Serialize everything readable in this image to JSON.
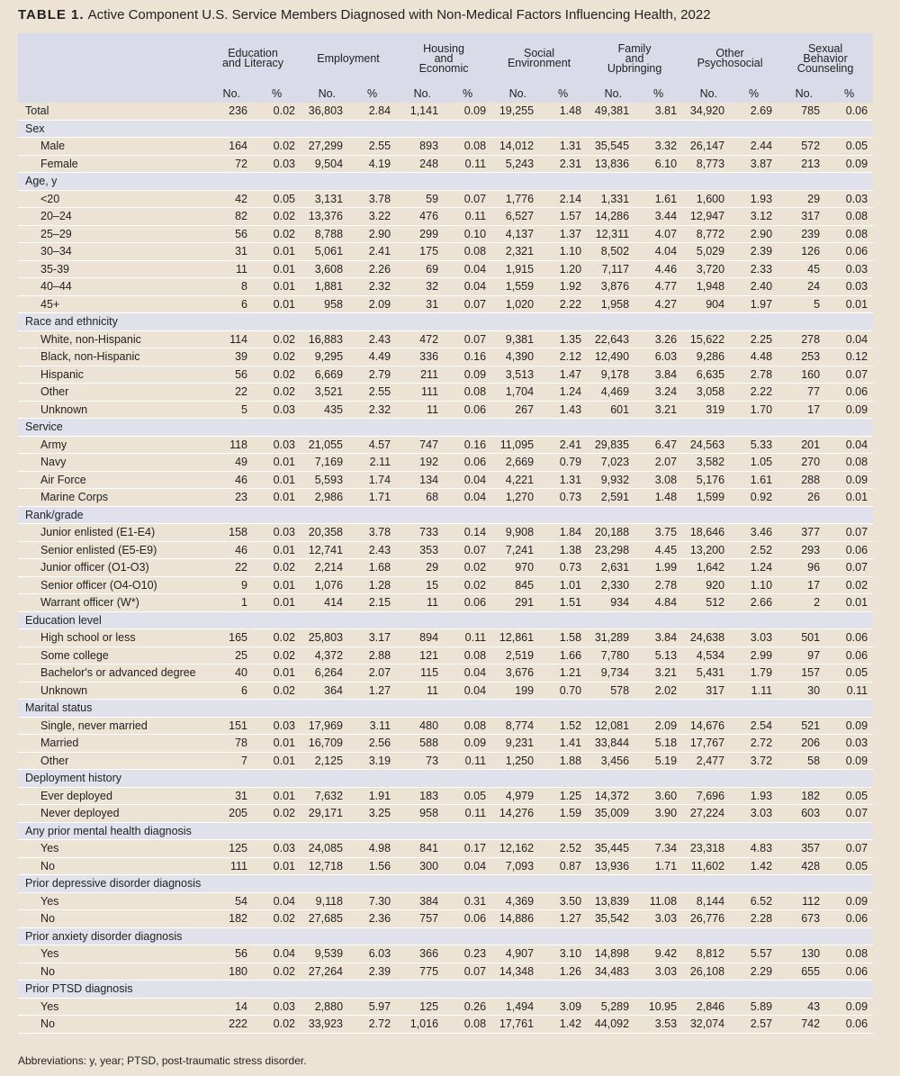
{
  "title_label": "TABLE 1.",
  "title": "Active Component U.S. Service Members Diagnosed with Non-Medical Factors Influencing Health, 2022",
  "table": {
    "column_groups": [
      [
        "Education",
        "and Literacy"
      ],
      [
        "Employment"
      ],
      [
        "Housing",
        "and",
        "Economic"
      ],
      [
        "Social",
        "Environment"
      ],
      [
        "Family",
        "and",
        "Upbringing"
      ],
      [
        "Other",
        "Psychosocial"
      ],
      [
        "Sexual",
        "Behavior",
        "Counseling"
      ]
    ],
    "sub_headers": [
      "No.",
      "%"
    ],
    "total": {
      "label": "Total",
      "cells": [
        "236",
        "0.02",
        "36,803",
        "2.84",
        "1,141",
        "0.09",
        "19,255",
        "1.48",
        "49,381",
        "3.81",
        "34,920",
        "2.69",
        "785",
        "0.06"
      ]
    },
    "sections": [
      {
        "label": "Sex",
        "rows": [
          {
            "label": "Male",
            "cells": [
              "164",
              "0.02",
              "27,299",
              "2.55",
              "893",
              "0.08",
              "14,012",
              "1.31",
              "35,545",
              "3.32",
              "26,147",
              "2.44",
              "572",
              "0.05"
            ]
          },
          {
            "label": "Female",
            "cells": [
              "72",
              "0.03",
              "9,504",
              "4.19",
              "248",
              "0.11",
              "5,243",
              "2.31",
              "13,836",
              "6.10",
              "8,773",
              "3.87",
              "213",
              "0.09"
            ]
          }
        ]
      },
      {
        "label": "Age, y",
        "rows": [
          {
            "label": "<20",
            "cells": [
              "42",
              "0.05",
              "3,131",
              "3.78",
              "59",
              "0.07",
              "1,776",
              "2.14",
              "1,331",
              "1.61",
              "1,600",
              "1.93",
              "29",
              "0.03"
            ]
          },
          {
            "label": "20–24",
            "cells": [
              "82",
              "0.02",
              "13,376",
              "3.22",
              "476",
              "0.11",
              "6,527",
              "1.57",
              "14,286",
              "3.44",
              "12,947",
              "3.12",
              "317",
              "0.08"
            ]
          },
          {
            "label": "25–29",
            "cells": [
              "56",
              "0.02",
              "8,788",
              "2.90",
              "299",
              "0.10",
              "4,137",
              "1.37",
              "12,311",
              "4.07",
              "8,772",
              "2.90",
              "239",
              "0.08"
            ]
          },
          {
            "label": "30–34",
            "cells": [
              "31",
              "0.01",
              "5,061",
              "2.41",
              "175",
              "0.08",
              "2,321",
              "1.10",
              "8,502",
              "4.04",
              "5,029",
              "2.39",
              "126",
              "0.06"
            ]
          },
          {
            "label": "35-39",
            "cells": [
              "11",
              "0.01",
              "3,608",
              "2.26",
              "69",
              "0.04",
              "1,915",
              "1.20",
              "7,117",
              "4.46",
              "3,720",
              "2.33",
              "45",
              "0.03"
            ]
          },
          {
            "label": "40–44",
            "cells": [
              "8",
              "0.01",
              "1,881",
              "2.32",
              "32",
              "0.04",
              "1,559",
              "1.92",
              "3,876",
              "4.77",
              "1,948",
              "2.40",
              "24",
              "0.03"
            ]
          },
          {
            "label": "45+",
            "cells": [
              "6",
              "0.01",
              "958",
              "2.09",
              "31",
              "0.07",
              "1,020",
              "2.22",
              "1,958",
              "4.27",
              "904",
              "1.97",
              "5",
              "0.01"
            ]
          }
        ]
      },
      {
        "label": "Race and ethnicity",
        "rows": [
          {
            "label": "White, non-Hispanic",
            "cells": [
              "114",
              "0.02",
              "16,883",
              "2.43",
              "472",
              "0.07",
              "9,381",
              "1.35",
              "22,643",
              "3.26",
              "15,622",
              "2.25",
              "278",
              "0.04"
            ]
          },
          {
            "label": "Black, non-Hispanic",
            "cells": [
              "39",
              "0.02",
              "9,295",
              "4.49",
              "336",
              "0.16",
              "4,390",
              "2.12",
              "12,490",
              "6.03",
              "9,286",
              "4.48",
              "253",
              "0.12"
            ]
          },
          {
            "label": "Hispanic",
            "cells": [
              "56",
              "0.02",
              "6,669",
              "2.79",
              "211",
              "0.09",
              "3,513",
              "1.47",
              "9,178",
              "3.84",
              "6,635",
              "2.78",
              "160",
              "0.07"
            ]
          },
          {
            "label": "Other",
            "cells": [
              "22",
              "0.02",
              "3,521",
              "2.55",
              "111",
              "0.08",
              "1,704",
              "1.24",
              "4,469",
              "3.24",
              "3,058",
              "2.22",
              "77",
              "0.06"
            ]
          },
          {
            "label": "Unknown",
            "cells": [
              "5",
              "0.03",
              "435",
              "2.32",
              "11",
              "0.06",
              "267",
              "1.43",
              "601",
              "3.21",
              "319",
              "1.70",
              "17",
              "0.09"
            ]
          }
        ]
      },
      {
        "label": "Service",
        "rows": [
          {
            "label": "Army",
            "cells": [
              "118",
              "0.03",
              "21,055",
              "4.57",
              "747",
              "0.16",
              "11,095",
              "2.41",
              "29,835",
              "6.47",
              "24,563",
              "5.33",
              "201",
              "0.04"
            ]
          },
          {
            "label": "Navy",
            "cells": [
              "49",
              "0.01",
              "7,169",
              "2.11",
              "192",
              "0.06",
              "2,669",
              "0.79",
              "7,023",
              "2.07",
              "3,582",
              "1.05",
              "270",
              "0.08"
            ]
          },
          {
            "label": "Air Force",
            "cells": [
              "46",
              "0.01",
              "5,593",
              "1.74",
              "134",
              "0.04",
              "4,221",
              "1.31",
              "9,932",
              "3.08",
              "5,176",
              "1.61",
              "288",
              "0.09"
            ]
          },
          {
            "label": "Marine Corps",
            "cells": [
              "23",
              "0.01",
              "2,986",
              "1.71",
              "68",
              "0.04",
              "1,270",
              "0.73",
              "2,591",
              "1.48",
              "1,599",
              "0.92",
              "26",
              "0.01"
            ]
          }
        ]
      },
      {
        "label": "Rank/grade",
        "rows": [
          {
            "label": "Junior enlisted (E1-E4)",
            "cells": [
              "158",
              "0.03",
              "20,358",
              "3.78",
              "733",
              "0.14",
              "9,908",
              "1.84",
              "20,188",
              "3.75",
              "18,646",
              "3.46",
              "377",
              "0.07"
            ]
          },
          {
            "label": "Senior enlisted (E5-E9)",
            "cells": [
              "46",
              "0.01",
              "12,741",
              "2.43",
              "353",
              "0.07",
              "7,241",
              "1.38",
              "23,298",
              "4.45",
              "13,200",
              "2.52",
              "293",
              "0.06"
            ]
          },
          {
            "label": "Junior officer (O1-O3)",
            "cells": [
              "22",
              "0.02",
              "2,214",
              "1.68",
              "29",
              "0.02",
              "970",
              "0.73",
              "2,631",
              "1.99",
              "1,642",
              "1.24",
              "96",
              "0.07"
            ]
          },
          {
            "label": "Senior officer (O4-O10)",
            "cells": [
              "9",
              "0.01",
              "1,076",
              "1.28",
              "15",
              "0.02",
              "845",
              "1.01",
              "2,330",
              "2.78",
              "920",
              "1.10",
              "17",
              "0.02"
            ]
          },
          {
            "label": "Warrant officer (W*)",
            "cells": [
              "1",
              "0.01",
              "414",
              "2.15",
              "11",
              "0.06",
              "291",
              "1.51",
              "934",
              "4.84",
              "512",
              "2.66",
              "2",
              "0.01"
            ]
          }
        ]
      },
      {
        "label": "Education level",
        "rows": [
          {
            "label": "High school or less",
            "cells": [
              "165",
              "0.02",
              "25,803",
              "3.17",
              "894",
              "0.11",
              "12,861",
              "1.58",
              "31,289",
              "3.84",
              "24,638",
              "3.03",
              "501",
              "0.06"
            ]
          },
          {
            "label": "Some college",
            "cells": [
              "25",
              "0.02",
              "4,372",
              "2.88",
              "121",
              "0.08",
              "2,519",
              "1.66",
              "7,780",
              "5.13",
              "4,534",
              "2.99",
              "97",
              "0.06"
            ]
          },
          {
            "label": "Bachelor's or advanced degree",
            "cells": [
              "40",
              "0.01",
              "6,264",
              "2.07",
              "115",
              "0.04",
              "3,676",
              "1.21",
              "9,734",
              "3.21",
              "5,431",
              "1.79",
              "157",
              "0.05"
            ]
          },
          {
            "label": "Unknown",
            "cells": [
              "6",
              "0.02",
              "364",
              "1.27",
              "11",
              "0.04",
              "199",
              "0.70",
              "578",
              "2.02",
              "317",
              "1.11",
              "30",
              "0.11"
            ]
          }
        ]
      },
      {
        "label": "Marital status",
        "rows": [
          {
            "label": "Single, never married",
            "cells": [
              "151",
              "0.03",
              "17,969",
              "3.11",
              "480",
              "0.08",
              "8,774",
              "1.52",
              "12,081",
              "2.09",
              "14,676",
              "2.54",
              "521",
              "0.09"
            ]
          },
          {
            "label": "Married",
            "cells": [
              "78",
              "0.01",
              "16,709",
              "2.56",
              "588",
              "0.09",
              "9,231",
              "1.41",
              "33,844",
              "5.18",
              "17,767",
              "2.72",
              "206",
              "0.03"
            ]
          },
          {
            "label": "Other",
            "cells": [
              "7",
              "0.01",
              "2,125",
              "3.19",
              "73",
              "0.11",
              "1,250",
              "1.88",
              "3,456",
              "5.19",
              "2,477",
              "3.72",
              "58",
              "0.09"
            ]
          }
        ]
      },
      {
        "label": "Deployment history",
        "rows": [
          {
            "label": "Ever deployed",
            "cells": [
              "31",
              "0.01",
              "7,632",
              "1.91",
              "183",
              "0.05",
              "4,979",
              "1.25",
              "14,372",
              "3.60",
              "7,696",
              "1.93",
              "182",
              "0.05"
            ]
          },
          {
            "label": "Never deployed",
            "cells": [
              "205",
              "0.02",
              "29,171",
              "3.25",
              "958",
              "0.11",
              "14,276",
              "1.59",
              "35,009",
              "3.90",
              "27,224",
              "3.03",
              "603",
              "0.07"
            ]
          }
        ]
      },
      {
        "label": "Any prior mental health diagnosis",
        "rows": [
          {
            "label": "Yes",
            "cells": [
              "125",
              "0.03",
              "24,085",
              "4.98",
              "841",
              "0.17",
              "12,162",
              "2.52",
              "35,445",
              "7.34",
              "23,318",
              "4.83",
              "357",
              "0.07"
            ]
          },
          {
            "label": "No",
            "cells": [
              "111",
              "0.01",
              "12,718",
              "1.56",
              "300",
              "0.04",
              "7,093",
              "0.87",
              "13,936",
              "1.71",
              "11,602",
              "1.42",
              "428",
              "0.05"
            ]
          }
        ]
      },
      {
        "label": "Prior depressive disorder diagnosis",
        "rows": [
          {
            "label": "Yes",
            "cells": [
              "54",
              "0.04",
              "9,118",
              "7.30",
              "384",
              "0.31",
              "4,369",
              "3.50",
              "13,839",
              "11.08",
              "8,144",
              "6.52",
              "112",
              "0.09"
            ]
          },
          {
            "label": "No",
            "cells": [
              "182",
              "0.02",
              "27,685",
              "2.36",
              "757",
              "0.06",
              "14,886",
              "1.27",
              "35,542",
              "3.03",
              "26,776",
              "2.28",
              "673",
              "0.06"
            ]
          }
        ]
      },
      {
        "label": "Prior anxiety disorder diagnosis",
        "rows": [
          {
            "label": "Yes",
            "cells": [
              "56",
              "0.04",
              "9,539",
              "6.03",
              "366",
              "0.23",
              "4,907",
              "3.10",
              "14,898",
              "9.42",
              "8,812",
              "5.57",
              "130",
              "0.08"
            ]
          },
          {
            "label": "No",
            "cells": [
              "180",
              "0.02",
              "27,264",
              "2.39",
              "775",
              "0.07",
              "14,348",
              "1.26",
              "34,483",
              "3.03",
              "26,108",
              "2.29",
              "655",
              "0.06"
            ]
          }
        ]
      },
      {
        "label": "Prior PTSD diagnosis",
        "rows": [
          {
            "label": "Yes",
            "cells": [
              "14",
              "0.03",
              "2,880",
              "5.97",
              "125",
              "0.26",
              "1,494",
              "3.09",
              "5,289",
              "10.95",
              "2,846",
              "5.89",
              "43",
              "0.09"
            ]
          },
          {
            "label": "No",
            "cells": [
              "222",
              "0.02",
              "33,923",
              "2.72",
              "1,016",
              "0.08",
              "17,761",
              "1.42",
              "44,092",
              "3.53",
              "32,074",
              "2.57",
              "742",
              "0.06"
            ]
          }
        ]
      }
    ]
  },
  "footnote": "Abbreviations: y, year; PTSD, post-traumatic stress disorder."
}
